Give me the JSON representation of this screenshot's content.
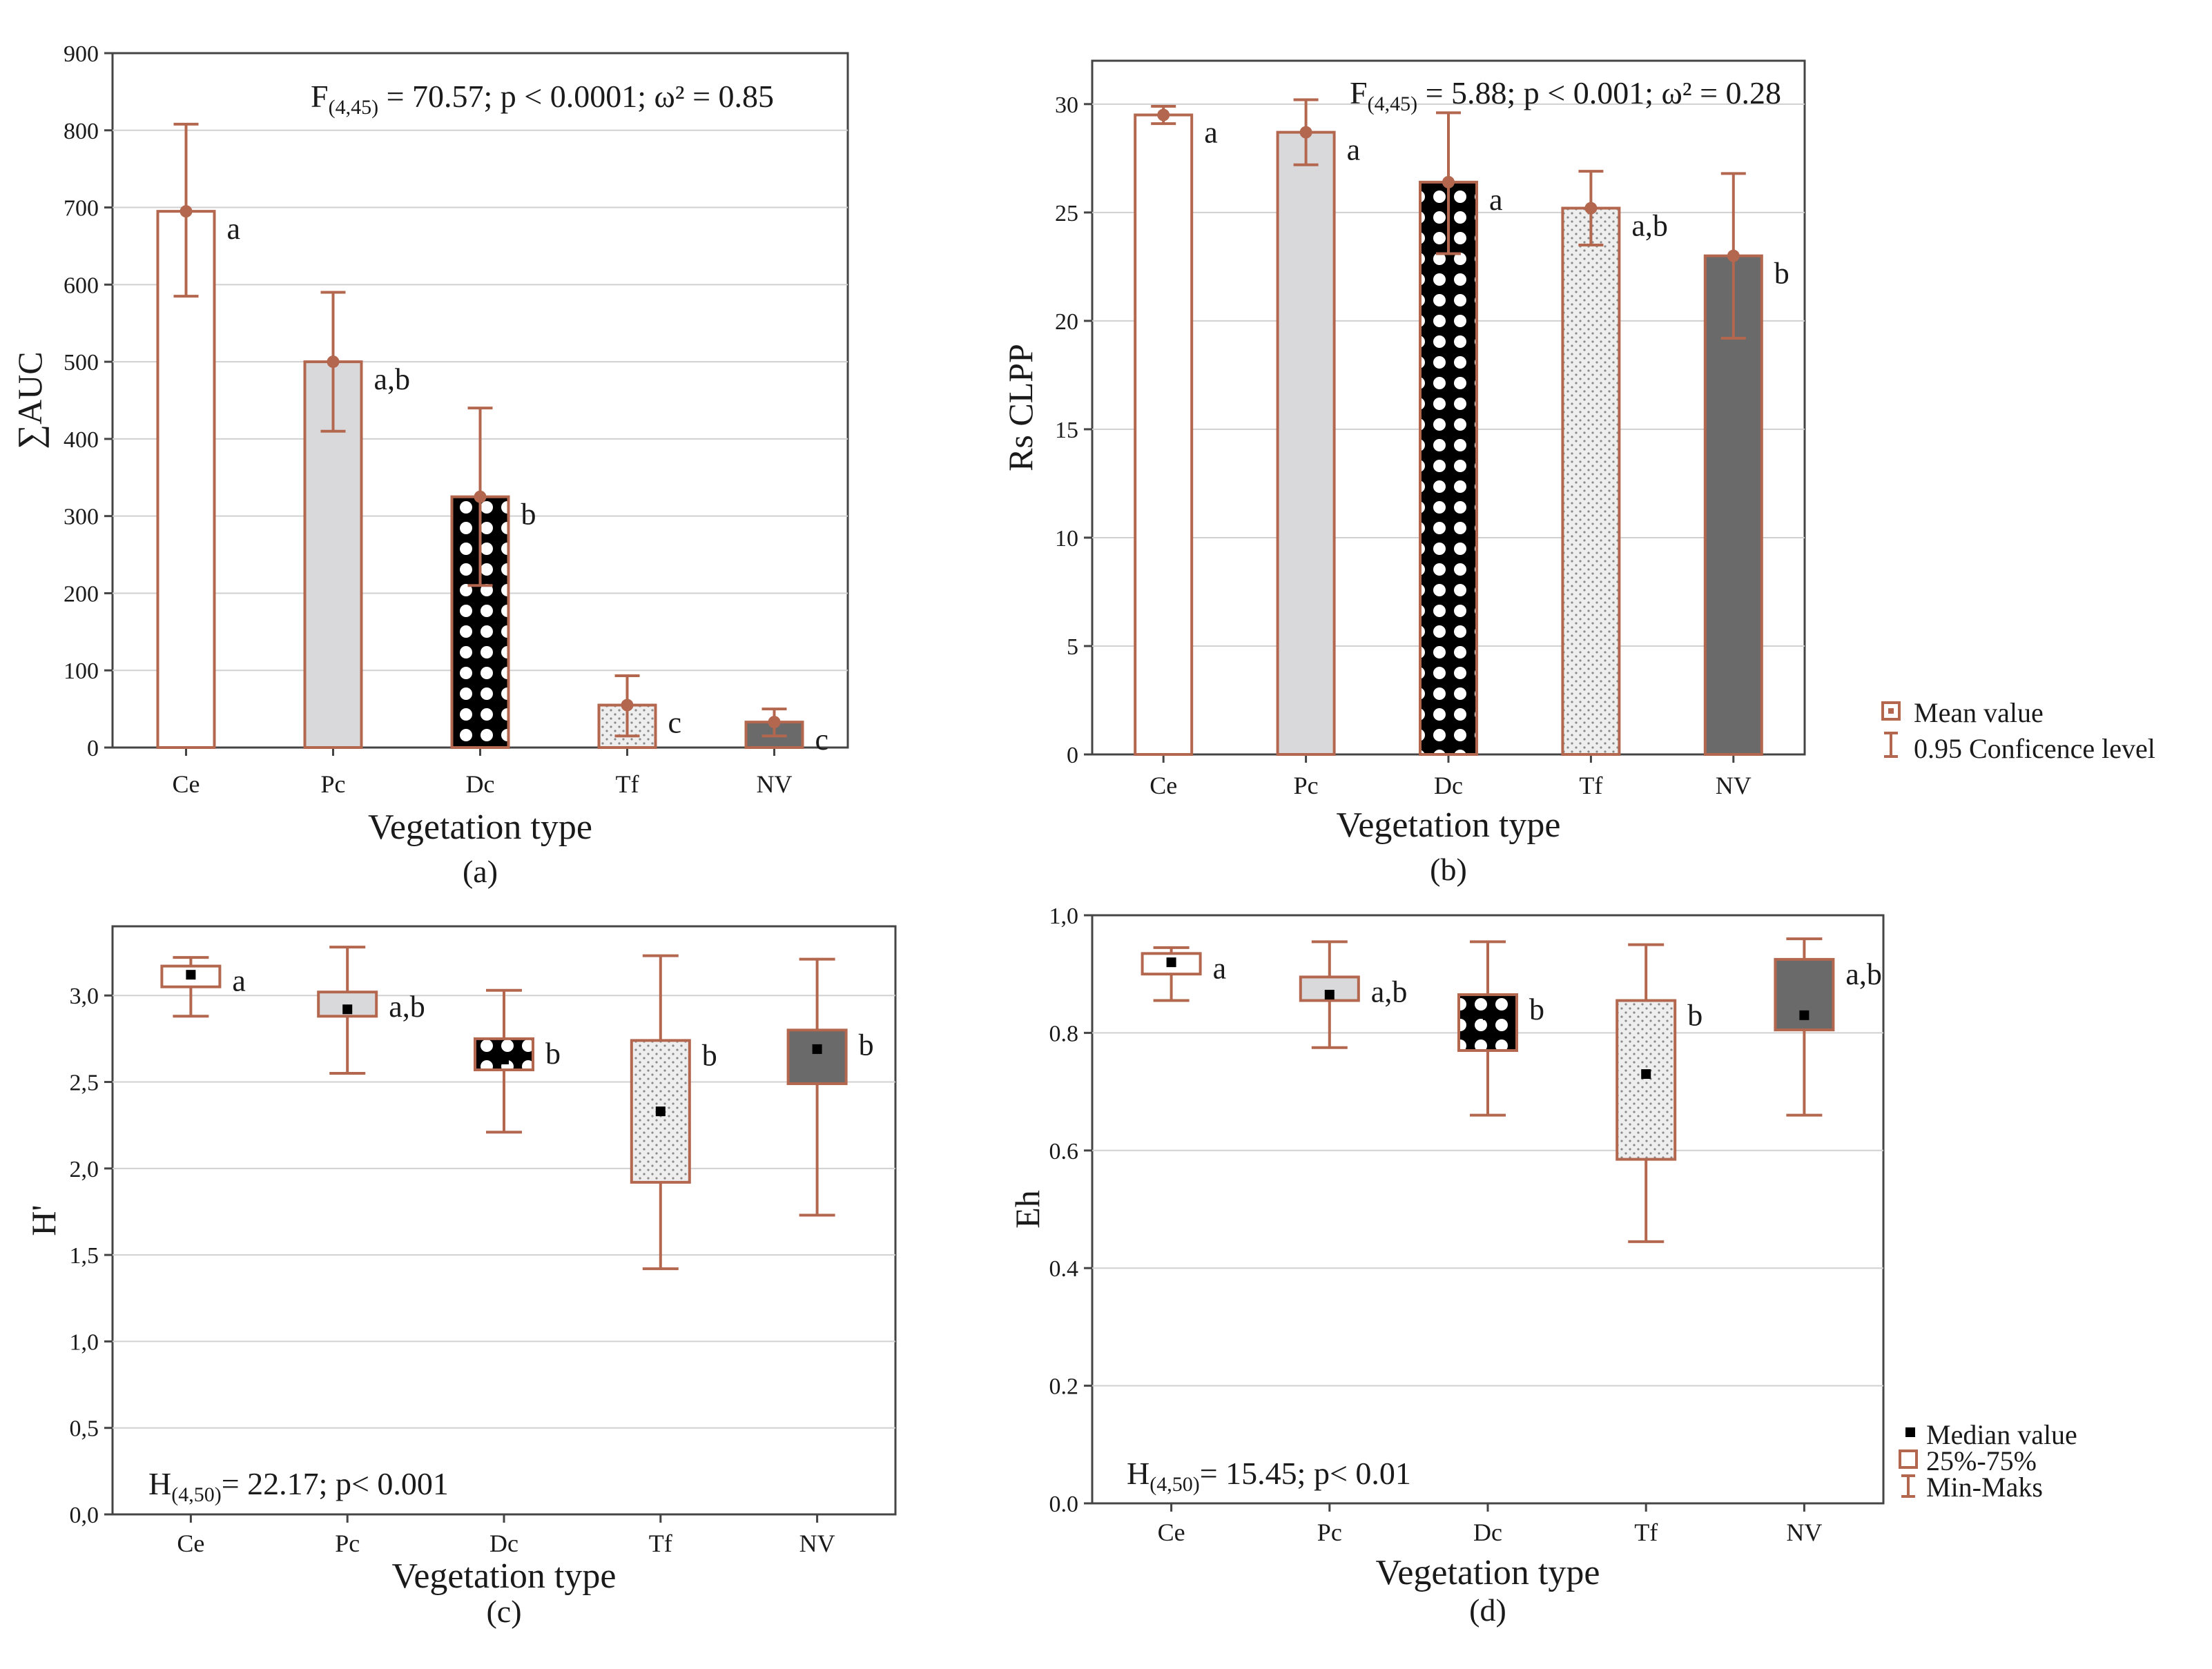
{
  "colors": {
    "stroke": "#b4674f",
    "whisker": "#b4674f",
    "light_fill": "#d9d9db",
    "dark_fill": "#6a6a6a",
    "grid": "#d0d0d0"
  },
  "legend_top": {
    "mean": "Mean value",
    "ci": "0.95 Conficence level"
  },
  "legend_bottom": {
    "median": "Median value",
    "iqr": "25%-75%",
    "range": "Min-Maks"
  },
  "chart_data": [
    {
      "id": "a",
      "type": "bar",
      "panel_label": "(a)",
      "xlabel": "Vegetation type",
      "ylabel": "∑AUC",
      "categories": [
        "Ce",
        "Pc",
        "Dc",
        "Tf",
        "NV"
      ],
      "ylim": [
        0,
        900
      ],
      "yticks": [
        "0",
        "100",
        "200",
        "300",
        "400",
        "500",
        "600",
        "700",
        "800",
        "900"
      ],
      "values": [
        695,
        500,
        325,
        55,
        33
      ],
      "ci_low": [
        585,
        410,
        210,
        15,
        15
      ],
      "ci_high": [
        808,
        590,
        440,
        93,
        50
      ],
      "letters": [
        "a",
        "a,b",
        "b",
        "c",
        "c"
      ],
      "stat": {
        "pre": "F",
        "sub": "(4,45)",
        "post": " = 70.57; p < 0.0001; ω² = 0.85"
      },
      "grid": true
    },
    {
      "id": "b",
      "type": "bar",
      "panel_label": "(b)",
      "xlabel": "Vegetation type",
      "ylabel": "Rs CLPP",
      "categories": [
        "Ce",
        "Pc",
        "Dc",
        "Tf",
        "NV"
      ],
      "ylim": [
        0,
        32
      ],
      "yticks": [
        "0",
        "5",
        "10",
        "15",
        "20",
        "25",
        "30"
      ],
      "values": [
        29.5,
        28.7,
        26.4,
        25.2,
        23.0
      ],
      "ci_low": [
        29.1,
        27.2,
        23.1,
        23.5,
        19.2
      ],
      "ci_high": [
        29.9,
        30.2,
        29.6,
        26.9,
        26.8
      ],
      "letters": [
        "a",
        "a",
        "a",
        "a,b",
        "b"
      ],
      "stat": {
        "pre": "F",
        "sub": "(4,45)",
        "post": " = 5.88; p < 0.001; ω² = 0.28"
      },
      "grid": true
    },
    {
      "id": "c",
      "type": "box",
      "panel_label": "(c)",
      "xlabel": "Vegetation type",
      "ylabel": "H'",
      "categories": [
        "Ce",
        "Pc",
        "Dc",
        "Tf",
        "NV"
      ],
      "ylim": [
        0,
        3.4
      ],
      "yticks": [
        "0,0",
        "0,5",
        "1,0",
        "1,5",
        "2,0",
        "2,5",
        "3,0"
      ],
      "min": [
        2.88,
        2.55,
        2.21,
        1.42,
        1.73
      ],
      "q1": [
        3.05,
        2.88,
        2.57,
        1.92,
        2.49
      ],
      "median": [
        3.12,
        2.92,
        2.63,
        2.33,
        2.69
      ],
      "q3": [
        3.17,
        3.02,
        2.75,
        2.74,
        2.8
      ],
      "max": [
        3.22,
        3.28,
        3.03,
        3.23,
        3.21
      ],
      "letters": [
        "a",
        "a,b",
        "b",
        "b",
        "b"
      ],
      "stat": {
        "pre": "H",
        "sub": "(4,50)",
        "post": "= 22.17; p< 0.001"
      },
      "grid": true
    },
    {
      "id": "d",
      "type": "box",
      "panel_label": "(d)",
      "xlabel": "Vegetation type",
      "ylabel": "Eh",
      "categories": [
        "Ce",
        "Pc",
        "Dc",
        "Tf",
        "NV"
      ],
      "ylim": [
        0,
        1.0
      ],
      "yticks": [
        "0.0",
        "0.2",
        "0.4",
        "0.6",
        "0.8",
        "1,0"
      ],
      "min": [
        0.855,
        0.775,
        0.66,
        0.445,
        0.66
      ],
      "q1": [
        0.9,
        0.855,
        0.77,
        0.585,
        0.805
      ],
      "median": [
        0.92,
        0.865,
        0.83,
        0.73,
        0.83
      ],
      "q3": [
        0.935,
        0.895,
        0.865,
        0.855,
        0.925
      ],
      "max": [
        0.945,
        0.955,
        0.955,
        0.95,
        0.96
      ],
      "letters": [
        "a",
        "a,b",
        "b",
        "b",
        "a,b"
      ],
      "stat": {
        "pre": "H",
        "sub": "(4,50)",
        "post": "= 15.45; p< 0.01"
      },
      "grid": true
    }
  ]
}
